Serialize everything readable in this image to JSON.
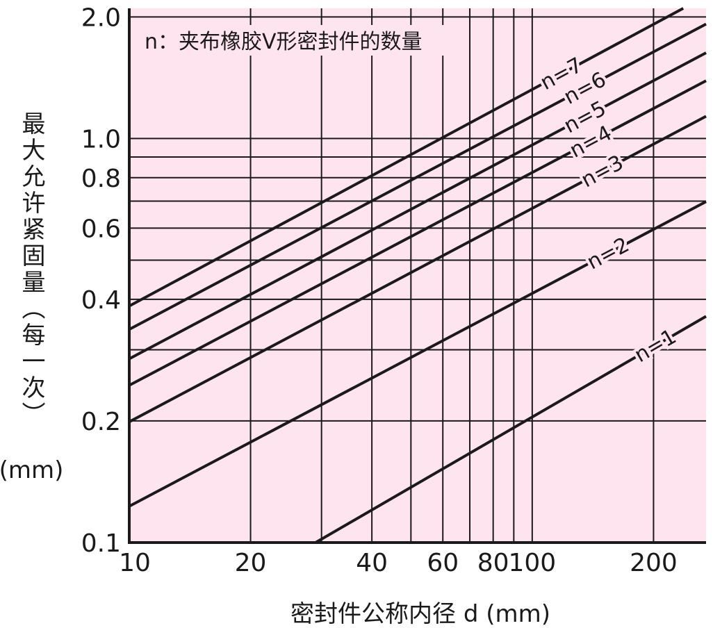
{
  "chart_data": {
    "type": "line",
    "annotation": "n：夹布橡胶V形密封件的数量",
    "x_label": "密封件公称内径 d (mm)",
    "y_label": "最大允许紧固量（每一次）",
    "y_unit": "(mm)",
    "x_scale": "log",
    "y_scale": "log",
    "grid": true,
    "xlim": [
      10,
      270
    ],
    "ylim": [
      0.1,
      2.1
    ],
    "xticks": [
      10,
      20,
      40,
      60,
      80,
      100,
      200
    ],
    "minor_xticks": [
      30,
      50,
      70,
      90
    ],
    "yticks": [
      0.1,
      0.2,
      0.4,
      0.6,
      0.8,
      {
        "value": 1,
        "label": "1.0"
      },
      {
        "value": 2,
        "label": "2.0"
      }
    ],
    "minor_yticks": [
      0.3,
      0.5,
      0.7,
      0.9
    ],
    "series": [
      {
        "name": "n=1",
        "color": "#1a1a1a",
        "x": [
          29,
          270
        ],
        "values": [
          0.1,
          0.363
        ]
      },
      {
        "name": "n=2",
        "color": "#1a1a1a",
        "x": [
          10,
          270
        ],
        "values": [
          0.123,
          0.698
        ]
      },
      {
        "name": "n=3",
        "color": "#1a1a1a",
        "x": [
          10,
          270
        ],
        "values": [
          0.199,
          1.135
        ]
      },
      {
        "name": "n=4",
        "color": "#1a1a1a",
        "x": [
          10,
          270
        ],
        "values": [
          0.245,
          1.39
        ]
      },
      {
        "name": "n=5",
        "color": "#1a1a1a",
        "x": [
          10,
          270
        ],
        "values": [
          0.285,
          1.63
        ]
      },
      {
        "name": "n=6",
        "color": "#1a1a1a",
        "x": [
          10,
          270
        ],
        "values": [
          0.337,
          1.92
        ]
      },
      {
        "name": "n=7",
        "color": "#1a1a1a",
        "x": [
          10,
          237
        ],
        "values": [
          0.385,
          2.1
        ]
      }
    ]
  }
}
